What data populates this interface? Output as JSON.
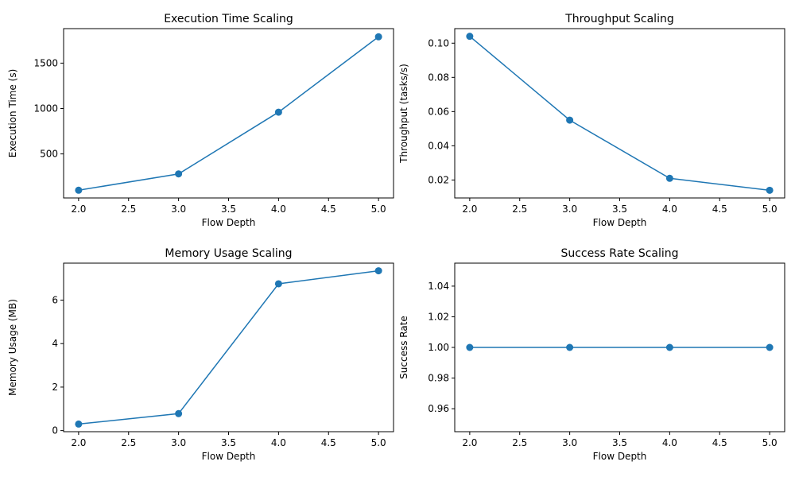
{
  "chart_data": [
    {
      "type": "line",
      "title": "Execution Time Scaling",
      "xlabel": "Flow Depth",
      "ylabel": "Execution Time (s)",
      "x": [
        2,
        3,
        4,
        5
      ],
      "y": [
        100,
        280,
        960,
        1790
      ],
      "xlim": [
        1.85,
        5.15
      ],
      "ylim": [
        15,
        1880
      ],
      "xticks": [
        2.0,
        2.5,
        3.0,
        3.5,
        4.0,
        4.5,
        5.0
      ],
      "xtick_labels": [
        "2.0",
        "2.5",
        "3.0",
        "3.5",
        "4.0",
        "4.5",
        "5.0"
      ],
      "yticks": [
        500,
        1000,
        1500
      ],
      "ytick_labels": [
        "500",
        "1000",
        "1500"
      ],
      "marker": "circle",
      "color": "#1f77b4"
    },
    {
      "type": "line",
      "title": "Throughput Scaling",
      "xlabel": "Flow Depth",
      "ylabel": "Throughput (tasks/s)",
      "x": [
        2,
        3,
        4,
        5
      ],
      "y": [
        0.104,
        0.055,
        0.021,
        0.014
      ],
      "xlim": [
        1.85,
        5.15
      ],
      "ylim": [
        0.0095,
        0.1085
      ],
      "xticks": [
        2.0,
        2.5,
        3.0,
        3.5,
        4.0,
        4.5,
        5.0
      ],
      "xtick_labels": [
        "2.0",
        "2.5",
        "3.0",
        "3.5",
        "4.0",
        "4.5",
        "5.0"
      ],
      "yticks": [
        0.02,
        0.04,
        0.06,
        0.08,
        0.1
      ],
      "ytick_labels": [
        "0.02",
        "0.04",
        "0.06",
        "0.08",
        "0.10"
      ],
      "marker": "circle",
      "color": "#1f77b4"
    },
    {
      "type": "line",
      "title": "Memory Usage Scaling",
      "xlabel": "Flow Depth",
      "ylabel": "Memory Usage (MB)",
      "x": [
        2,
        3,
        4,
        5
      ],
      "y": [
        0.3,
        0.78,
        6.75,
        7.35
      ],
      "xlim": [
        1.85,
        5.15
      ],
      "ylim": [
        -0.05,
        7.7
      ],
      "xticks": [
        2.0,
        2.5,
        3.0,
        3.5,
        4.0,
        4.5,
        5.0
      ],
      "xtick_labels": [
        "2.0",
        "2.5",
        "3.0",
        "3.5",
        "4.0",
        "4.5",
        "5.0"
      ],
      "yticks": [
        0,
        2,
        4,
        6
      ],
      "ytick_labels": [
        "0",
        "2",
        "4",
        "6"
      ],
      "marker": "circle",
      "color": "#1f77b4"
    },
    {
      "type": "line",
      "title": "Success Rate Scaling",
      "xlabel": "Flow Depth",
      "ylabel": "Success Rate",
      "x": [
        2,
        3,
        4,
        5
      ],
      "y": [
        1.0,
        1.0,
        1.0,
        1.0
      ],
      "xlim": [
        1.85,
        5.15
      ],
      "ylim": [
        0.945,
        1.055
      ],
      "xticks": [
        2.0,
        2.5,
        3.0,
        3.5,
        4.0,
        4.5,
        5.0
      ],
      "xtick_labels": [
        "2.0",
        "2.5",
        "3.0",
        "3.5",
        "4.0",
        "4.5",
        "5.0"
      ],
      "yticks": [
        0.96,
        0.98,
        1.0,
        1.02,
        1.04
      ],
      "ytick_labels": [
        "0.96",
        "0.98",
        "1.00",
        "1.02",
        "1.04"
      ],
      "marker": "circle",
      "color": "#1f77b4"
    }
  ]
}
